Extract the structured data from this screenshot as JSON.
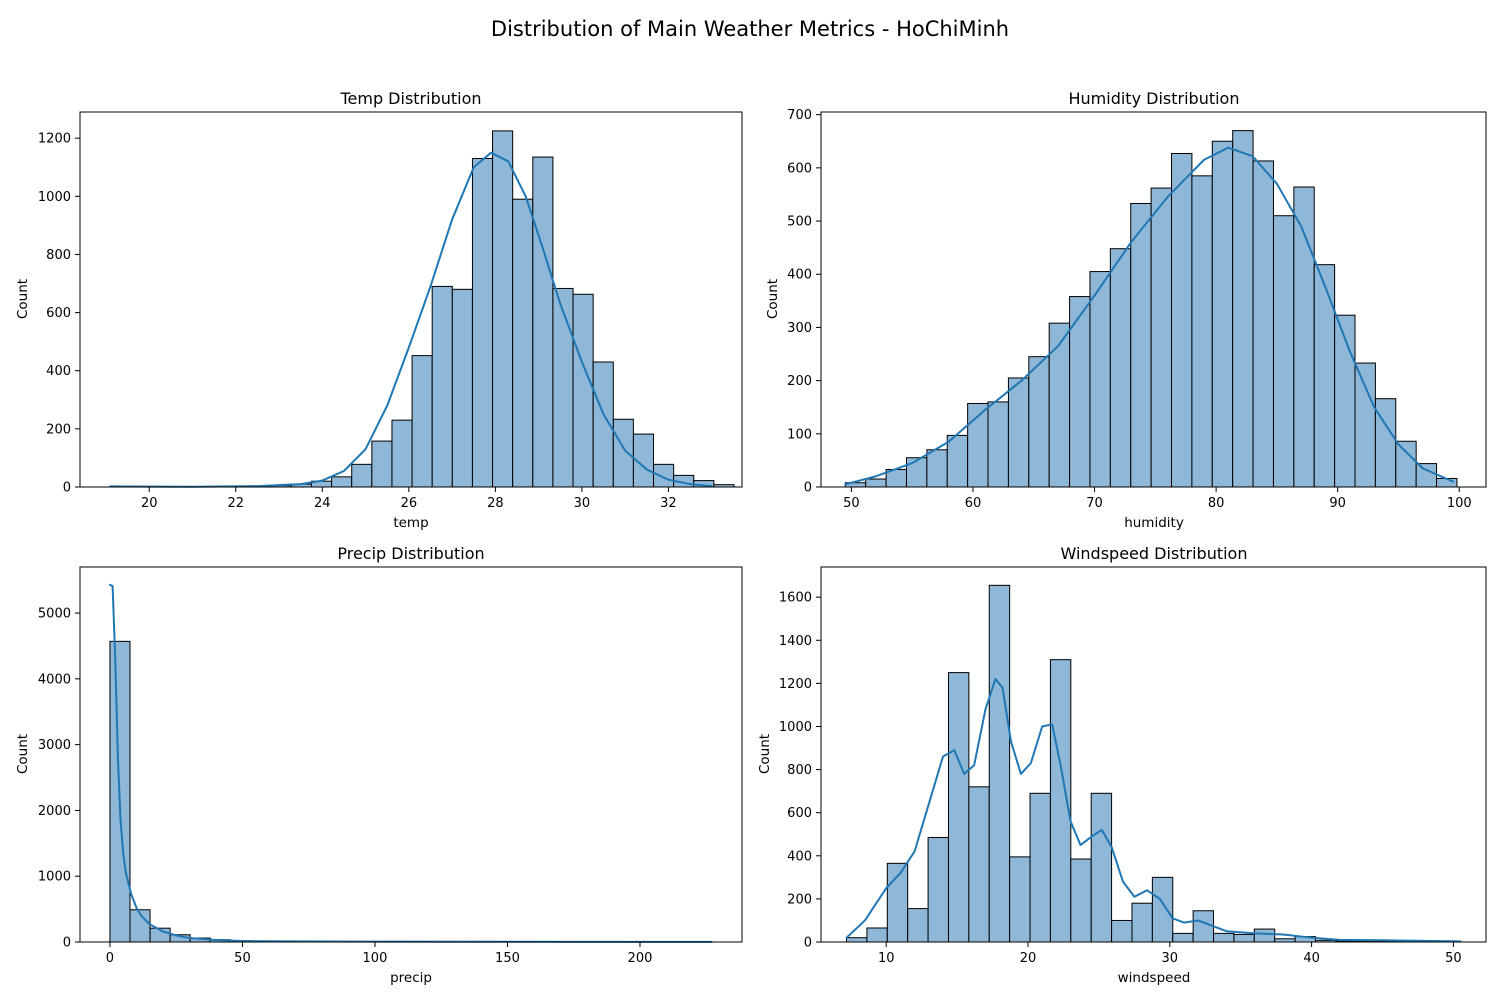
{
  "figure": {
    "title": "Distribution of Main Weather Metrics - HoChiMinh"
  },
  "colors": {
    "bar_fill": "#8fb7d7",
    "bar_edge": "#000000",
    "kde_line": "#1f77b4",
    "axes_edge": "#000000"
  },
  "chart_data": [
    {
      "type": "bar",
      "title": "Temp Distribution",
      "xlabel": "temp",
      "ylabel": "Count",
      "xlim": [
        18.4,
        33.7
      ],
      "ylim": [
        0,
        1290
      ],
      "xticks": [
        20,
        22,
        24,
        26,
        28,
        30,
        32
      ],
      "yticks": [
        0,
        200,
        400,
        600,
        800,
        1000,
        1200
      ],
      "bin_start": 19.1,
      "bin_width": 0.465,
      "values": [
        3,
        1,
        1,
        0,
        1,
        1,
        2,
        3,
        5,
        10,
        20,
        35,
        78,
        158,
        230,
        452,
        690,
        680,
        1130,
        1225,
        990,
        1135,
        683,
        663,
        430,
        233,
        182,
        78,
        40,
        22,
        8
      ],
      "kde": {
        "x": [
          19.1,
          21,
          22.5,
          23.5,
          24,
          24.5,
          25,
          25.5,
          26,
          26.5,
          27,
          27.5,
          27.9,
          28.3,
          28.7,
          29.1,
          29.5,
          30,
          30.5,
          31,
          31.5,
          32,
          32.5,
          33
        ],
        "y": [
          2,
          1,
          3,
          10,
          22,
          55,
          130,
          280,
          480,
          690,
          920,
          1100,
          1150,
          1120,
          1000,
          820,
          630,
          430,
          250,
          125,
          60,
          25,
          10,
          3
        ]
      },
      "grid": false,
      "legend": "none"
    },
    {
      "type": "bar",
      "title": "Humidity Distribution",
      "xlabel": "humidity",
      "ylabel": "Count",
      "xlim": [
        47.5,
        102.2
      ],
      "ylim": [
        0,
        705
      ],
      "xticks": [
        50,
        60,
        70,
        80,
        90,
        100
      ],
      "yticks": [
        0,
        100,
        200,
        300,
        400,
        500,
        600,
        700
      ],
      "bin_start": 49.5,
      "bin_width": 1.677,
      "values": [
        8,
        15,
        33,
        55,
        70,
        97,
        157,
        160,
        205,
        245,
        308,
        358,
        405,
        448,
        533,
        562,
        627,
        585,
        650,
        670,
        613,
        510,
        564,
        418,
        323,
        233,
        166,
        86,
        44,
        16
      ],
      "kde": {
        "x": [
          49.5,
          52,
          55,
          58,
          61,
          64,
          67,
          70,
          73,
          76,
          79,
          81,
          83,
          85,
          87,
          89,
          91,
          93,
          95,
          97,
          99.5
        ],
        "y": [
          5,
          20,
          45,
          85,
          145,
          200,
          265,
          360,
          460,
          545,
          615,
          638,
          622,
          570,
          490,
          375,
          255,
          150,
          80,
          35,
          10
        ]
      },
      "grid": false,
      "legend": "none"
    },
    {
      "type": "bar",
      "title": "Precip Distribution",
      "xlabel": "precip",
      "ylabel": "Count",
      "xlim": [
        -11.3,
        238.5
      ],
      "ylim": [
        0,
        5700
      ],
      "xticks": [
        0,
        50,
        100,
        150,
        200
      ],
      "yticks": [
        0,
        1000,
        2000,
        3000,
        4000,
        5000
      ],
      "bin_start": 0,
      "bin_width": 7.57,
      "values": [
        4570,
        490,
        210,
        110,
        60,
        35,
        20,
        15,
        12,
        10,
        8,
        6,
        5,
        4,
        3,
        3,
        2,
        2,
        2,
        1,
        1,
        1,
        1,
        1,
        1,
        1,
        1,
        1,
        1,
        1
      ],
      "kde": {
        "x": [
          0,
          1,
          2,
          3,
          4,
          5,
          6,
          8,
          10,
          12,
          15,
          20,
          25,
          30,
          40,
          50,
          60,
          70,
          100,
          150,
          227
        ],
        "y": [
          5430,
          5410,
          4300,
          2800,
          1850,
          1350,
          1050,
          730,
          520,
          390,
          270,
          160,
          100,
          60,
          30,
          15,
          12,
          10,
          6,
          3,
          2
        ]
      },
      "grid": false,
      "legend": "none"
    },
    {
      "type": "bar",
      "title": "Windspeed Distribution",
      "xlabel": "windspeed",
      "ylabel": "Count",
      "xlim": [
        5.4,
        52.3
      ],
      "ylim": [
        0,
        1740
      ],
      "xticks": [
        10,
        20,
        30,
        40,
        50
      ],
      "yticks": [
        0,
        200,
        400,
        600,
        800,
        1000,
        1200,
        1400,
        1600
      ],
      "bin_start": 7.2,
      "bin_width": 1.438,
      "values": [
        20,
        65,
        365,
        155,
        485,
        1250,
        720,
        1655,
        395,
        690,
        1310,
        385,
        690,
        100,
        180,
        300,
        40,
        145,
        40,
        35,
        60,
        15,
        25,
        8,
        5,
        5,
        3,
        3,
        2,
        2
      ],
      "kde": {
        "x": [
          7.2,
          8.5,
          10,
          11,
          12,
          13,
          14,
          14.8,
          15.5,
          16.2,
          17,
          17.7,
          18.2,
          18.8,
          19.5,
          20.2,
          21,
          21.7,
          22.3,
          23,
          23.7,
          24.5,
          25.2,
          25.9,
          26.7,
          27.5,
          28.4,
          29.3,
          30.2,
          31,
          32,
          33,
          34,
          36,
          38,
          40,
          42,
          45,
          48,
          50.5
        ],
        "y": [
          20,
          100,
          250,
          320,
          420,
          640,
          860,
          890,
          780,
          820,
          1080,
          1220,
          1180,
          930,
          780,
          830,
          1000,
          1010,
          820,
          560,
          450,
          490,
          520,
          440,
          280,
          210,
          240,
          200,
          110,
          90,
          100,
          75,
          50,
          40,
          35,
          20,
          10,
          8,
          5,
          3
        ]
      },
      "grid": false,
      "legend": "none"
    }
  ]
}
